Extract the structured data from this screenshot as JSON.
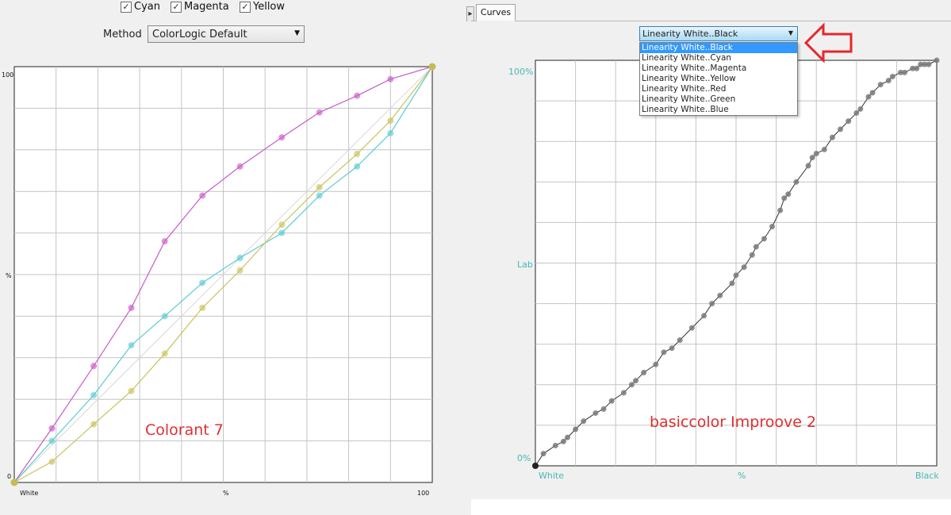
{
  "channels": {
    "cyan": {
      "label": "Cyan",
      "checked": true
    },
    "magenta": {
      "label": "Magenta",
      "checked": true
    },
    "yellow": {
      "label": "Yellow",
      "checked": true
    }
  },
  "method": {
    "label": "Method",
    "value": "ColorLogic Default"
  },
  "left_chart": {
    "y_top": "100",
    "y_mid": "%",
    "y_bottom": "0",
    "x_left": "White",
    "x_mid": "%",
    "x_right": "100",
    "caption": "Colorant 7"
  },
  "right_panel": {
    "tab_label": "Curves",
    "curve_select": {
      "value": "Linearity White..Black"
    },
    "curve_options": [
      "Linearity White..Black",
      "Linearity White..Cyan",
      "Linearity White..Magenta",
      "Linearity White..Yellow",
      "Linearity White..Red",
      "Linearity White..Green",
      "Linearity White..Blue"
    ],
    "y_top": "100%",
    "y_mid": "Lab",
    "y_bottom": "0%",
    "x_left": "White",
    "x_mid": "%",
    "x_right": "Black",
    "caption": "basiccolor Improove 2"
  },
  "colors": {
    "cyan_curve": "#5ccbd3",
    "magenta_curve": "#c85bc8",
    "yellow_curve": "#c9c25a",
    "axis_label": "#46b9b5",
    "annotation": "#e03030"
  },
  "chart_data": [
    {
      "type": "line",
      "title": "",
      "xlabel": "%",
      "ylabel": "%",
      "xlim": [
        0,
        100
      ],
      "ylim": [
        0,
        100
      ],
      "grid": true,
      "series": [
        {
          "name": "Cyan",
          "x": [
            0,
            9,
            19,
            28,
            36,
            45,
            54,
            64,
            73,
            82,
            90,
            100
          ],
          "y": [
            0,
            10,
            21,
            33,
            40,
            48,
            54,
            60,
            69,
            76,
            84,
            100
          ]
        },
        {
          "name": "Magenta",
          "x": [
            0,
            9,
            19,
            28,
            36,
            45,
            54,
            64,
            73,
            82,
            90,
            100
          ],
          "y": [
            0,
            13,
            28,
            42,
            58,
            69,
            76,
            83,
            89,
            93,
            97,
            100
          ]
        },
        {
          "name": "Yellow",
          "x": [
            0,
            9,
            19,
            28,
            36,
            45,
            54,
            64,
            73,
            82,
            90,
            100
          ],
          "y": [
            0,
            5,
            14,
            22,
            31,
            42,
            51,
            62,
            71,
            79,
            87,
            100
          ]
        }
      ]
    },
    {
      "type": "line",
      "title": "",
      "xlabel": "%",
      "ylabel": "Lab",
      "xlim": [
        0,
        100
      ],
      "ylim": [
        0,
        100
      ],
      "grid": true,
      "series": [
        {
          "x": [
            0,
            2,
            5,
            7,
            8,
            10,
            12,
            15,
            17,
            19,
            22,
            24,
            25,
            27,
            30,
            32,
            34,
            36,
            39,
            42,
            44,
            46,
            49,
            50,
            52,
            54,
            55,
            57,
            59,
            61,
            62,
            63,
            65,
            68,
            69,
            70,
            72,
            74,
            76,
            78,
            80,
            81,
            83,
            84,
            86,
            88,
            89,
            91,
            92,
            94,
            95,
            96,
            97,
            98,
            100
          ],
          "y": [
            0,
            3,
            5,
            6,
            7,
            9,
            11,
            13,
            14,
            16,
            18,
            20,
            21,
            23,
            25,
            28,
            29,
            31,
            34,
            37,
            40,
            42,
            45,
            47,
            49,
            52,
            54,
            56,
            59,
            63,
            66,
            67,
            70,
            74,
            76,
            77,
            78,
            81,
            83,
            85,
            87,
            88,
            91,
            92,
            94,
            95,
            96,
            97,
            97,
            98,
            98,
            99,
            99,
            99,
            100
          ]
        }
      ]
    }
  ]
}
